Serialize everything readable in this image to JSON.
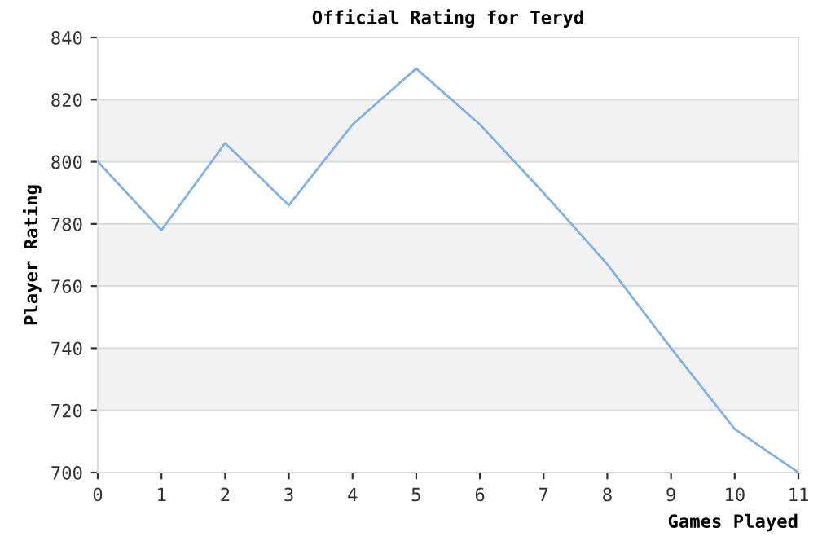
{
  "chart_data": {
    "type": "line",
    "title": "Official Rating for Teryd",
    "xlabel": "Games Played",
    "ylabel": "Player Rating",
    "x": [
      0,
      1,
      2,
      3,
      4,
      5,
      6,
      7,
      8,
      9,
      10,
      11
    ],
    "series": [
      {
        "color": "#7fb2e5",
        "values": [
          800,
          778,
          806,
          786,
          812,
          830,
          812,
          790,
          767,
          740,
          714,
          700
        ]
      }
    ],
    "xlim": [
      0,
      11
    ],
    "xticks": [
      0,
      1,
      2,
      3,
      4,
      5,
      6,
      7,
      8,
      9,
      10,
      11
    ],
    "ylim": [
      700,
      840
    ],
    "yticks": [
      700,
      720,
      740,
      760,
      780,
      800,
      820,
      840
    ],
    "bands": [
      {
        "axis": "y",
        "from": 720,
        "to": 740,
        "color": "#f2f2f2"
      },
      {
        "axis": "y",
        "from": 760,
        "to": 780,
        "color": "#f2f2f2"
      },
      {
        "axis": "y",
        "from": 800,
        "to": 820,
        "color": "#f2f2f2"
      }
    ],
    "grid": "y"
  }
}
